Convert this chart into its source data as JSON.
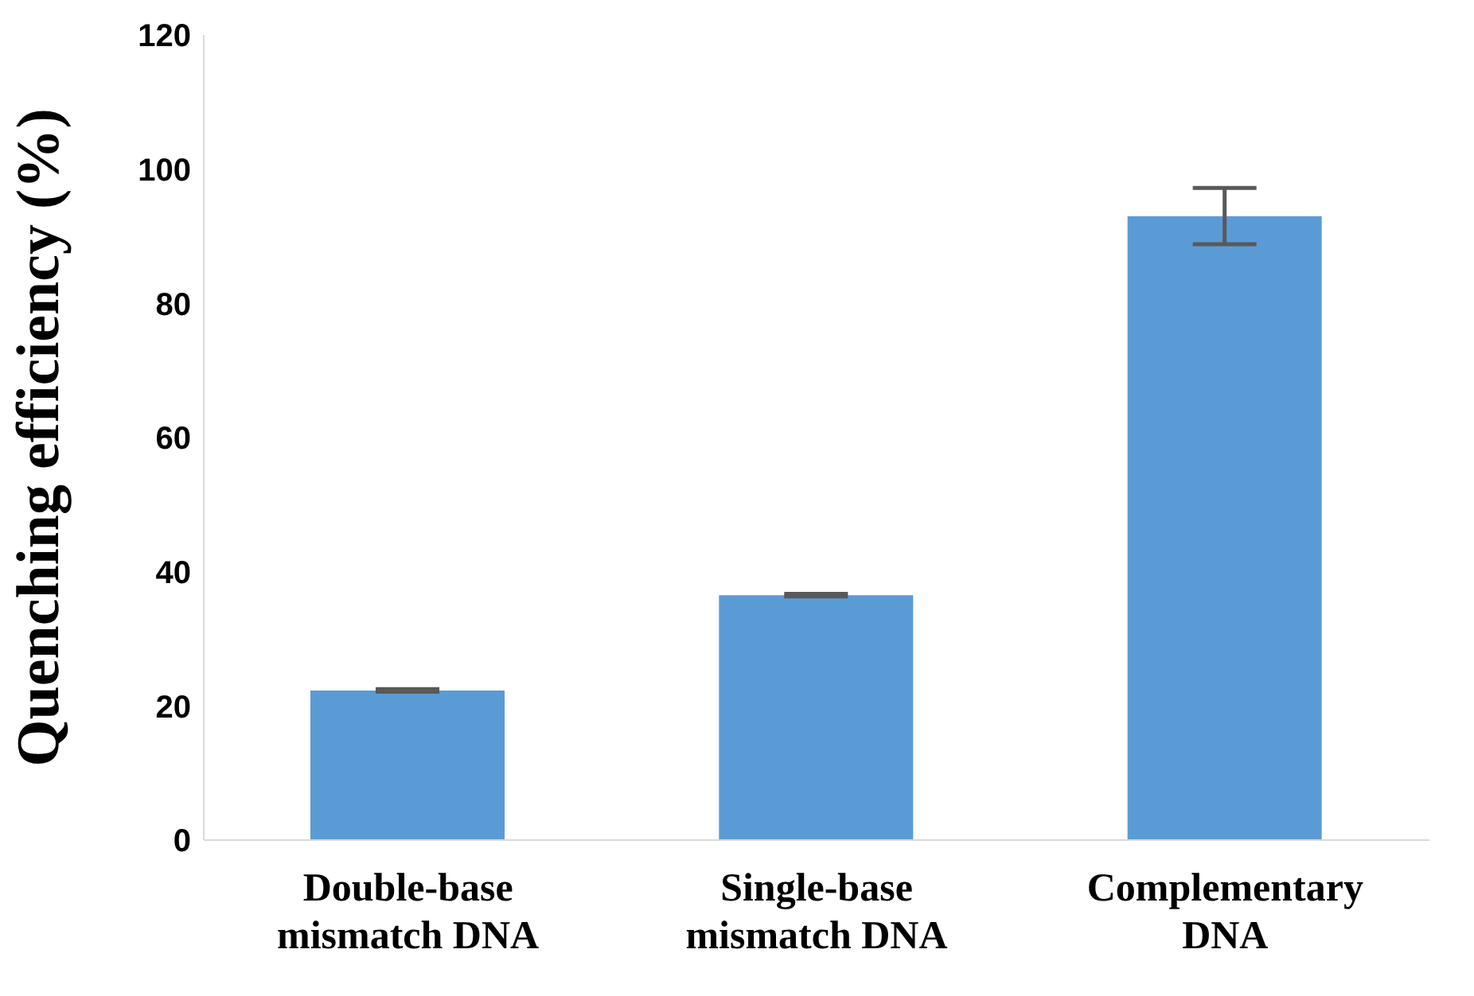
{
  "chart_data": {
    "type": "bar",
    "ylabel": "Quenching efficiency (%)",
    "categories": [
      "Double-base mismatch DNA",
      "Single-base mismatch DNA",
      "Complementary DNA"
    ],
    "values": [
      22.3,
      36.5,
      93.0
    ],
    "errors": [
      0.2,
      0.2,
      4.2
    ],
    "color": "#5b9bd5",
    "ylim": [
      0,
      120
    ],
    "yticks": [
      0,
      20,
      40,
      60,
      80,
      100,
      120
    ],
    "grid": false
  }
}
